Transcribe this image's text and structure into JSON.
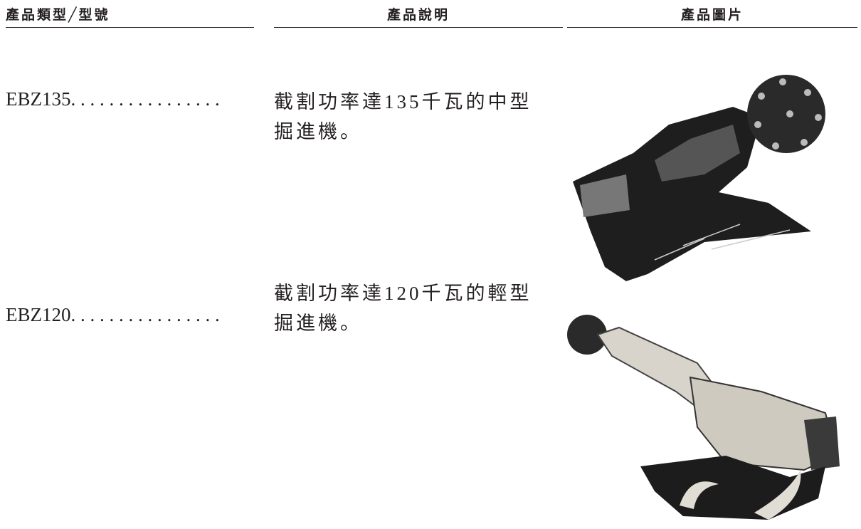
{
  "header": {
    "col1": "產品類型╱型號",
    "col2": "產品說明",
    "col3": "產品圖片"
  },
  "rows": [
    {
      "model": "EBZ135. . . . . . . . . . . . . . . .",
      "description": "截割功率達135千瓦的中型掘進機。"
    },
    {
      "model": "EBZ120. . . . . . . . . . . . . . . .",
      "description": "截割功率達120千瓦的輕型掘進機。"
    }
  ]
}
